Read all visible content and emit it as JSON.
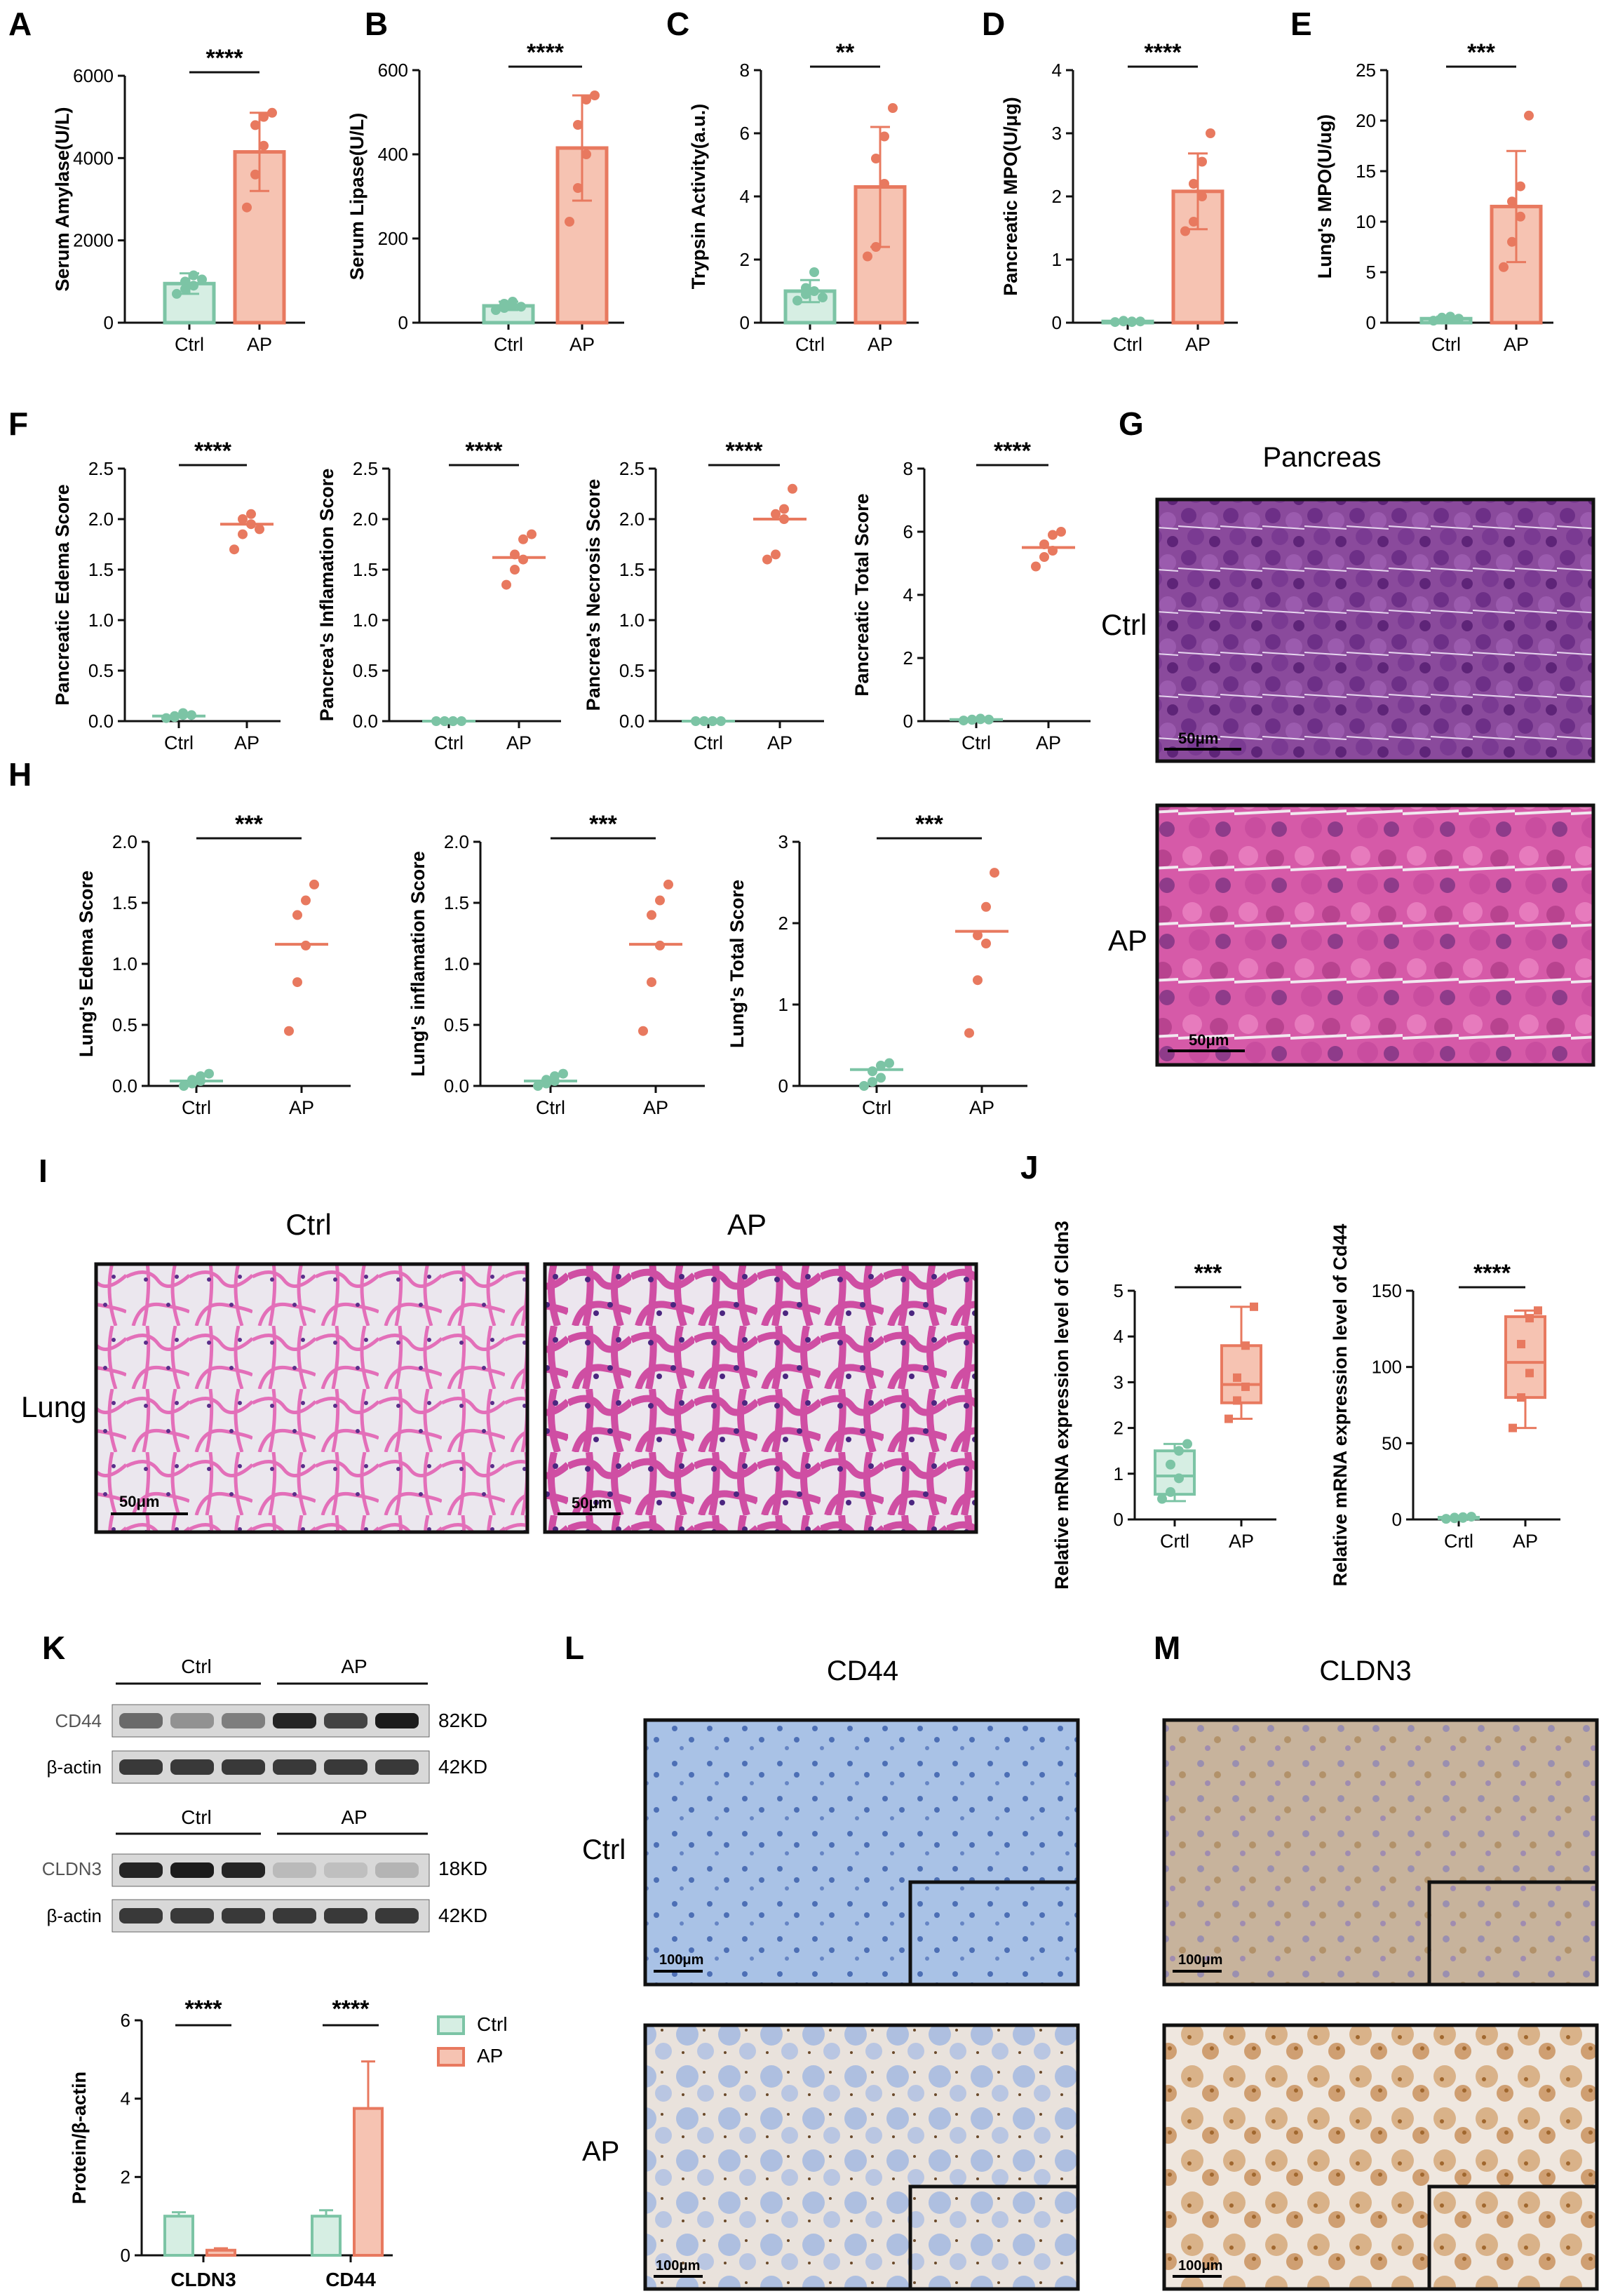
{
  "panels": {
    "A": "A",
    "B": "B",
    "C": "C",
    "D": "D",
    "E": "E",
    "F": "F",
    "G": "G",
    "H": "H",
    "I": "I",
    "J": "J",
    "K": "K",
    "L": "L",
    "M": "M"
  },
  "histology": {
    "G": {
      "title": "Pancreas",
      "row_labels": [
        "Ctrl",
        "AP"
      ],
      "scale": "50μm"
    },
    "I": {
      "col_labels": [
        "Ctrl",
        "AP"
      ],
      "row_label": "Lung",
      "scale": "50μm"
    },
    "L": {
      "title": "CD44",
      "row_labels": [
        "Ctrl",
        "AP"
      ],
      "scale": "100μm"
    },
    "M": {
      "title": "CLDN3",
      "scale": "100μm"
    }
  },
  "western": {
    "group_labels": [
      "Ctrl",
      "AP"
    ],
    "blot1": {
      "rows": [
        "CD44",
        "β-actin"
      ],
      "sizes": [
        "82KD",
        "42KD"
      ],
      "intensity": [
        [
          0.55,
          0.35,
          0.45,
          0.9,
          0.75,
          0.95
        ],
        [
          0.8,
          0.8,
          0.8,
          0.8,
          0.8,
          0.8
        ]
      ]
    },
    "blot2": {
      "rows": [
        "CLDN3",
        "β-actin"
      ],
      "sizes": [
        "18KD",
        "42KD"
      ],
      "intensity": [
        [
          0.9,
          0.95,
          0.9,
          0.15,
          0.12,
          0.18
        ],
        [
          0.8,
          0.8,
          0.8,
          0.8,
          0.8,
          0.8
        ]
      ]
    }
  },
  "colors": {
    "ctrl": "#7cc4a5",
    "ap": "#e8795f",
    "ctrl_fill": "#d6eee3",
    "ap_fill": "#f6c3b2"
  },
  "chart_data": [
    {
      "id": "A",
      "type": "bar",
      "categories": [
        "Ctrl",
        "AP"
      ],
      "ylabel": "Serum Amylase(U/L)",
      "ylim": [
        0,
        6000
      ],
      "yticks": [
        0,
        2000,
        4000,
        6000
      ],
      "means": [
        950,
        4150
      ],
      "sd": [
        250,
        950
      ],
      "points": [
        [
          700,
          820,
          900,
          1000,
          1150,
          1050
        ],
        [
          2800,
          3600,
          4300,
          4800,
          5000,
          5100
        ]
      ],
      "sig": "****"
    },
    {
      "id": "B",
      "type": "bar",
      "categories": [
        "Ctrl",
        "AP"
      ],
      "ylabel": "Serum Lipase(U/L)",
      "ylim": [
        0,
        600
      ],
      "yticks": [
        0,
        200,
        400,
        600
      ],
      "means": [
        40,
        415
      ],
      "sd": [
        10,
        125
      ],
      "points": [
        [
          30,
          35,
          40,
          45,
          50,
          38
        ],
        [
          240,
          320,
          400,
          470,
          530,
          540
        ]
      ],
      "sig": "****"
    },
    {
      "id": "C",
      "type": "bar",
      "categories": [
        "Ctrl",
        "AP"
      ],
      "ylabel": "Trypsin Activity(a.u.)",
      "ylim": [
        0,
        8
      ],
      "yticks": [
        0,
        2,
        4,
        6,
        8
      ],
      "means": [
        1.0,
        4.3
      ],
      "sd": [
        0.35,
        1.9
      ],
      "points": [
        [
          0.7,
          0.9,
          1.0,
          1.1,
          1.6,
          0.8
        ],
        [
          2.1,
          2.4,
          4.4,
          5.2,
          5.9,
          6.8
        ]
      ],
      "sig": "**"
    },
    {
      "id": "D",
      "type": "bar",
      "categories": [
        "Ctrl",
        "AP"
      ],
      "ylabel": "Pancreatic MPO(U/μg)",
      "ylim": [
        0,
        4
      ],
      "yticks": [
        0,
        1,
        2,
        3,
        4
      ],
      "means": [
        0.02,
        2.08
      ],
      "sd": [
        0.01,
        0.6
      ],
      "points": [
        [
          0.01,
          0.02,
          0.02,
          0.03,
          0.01,
          0.02
        ],
        [
          1.45,
          1.6,
          2.0,
          2.2,
          2.55,
          3.0
        ]
      ],
      "sig": "****"
    },
    {
      "id": "E",
      "type": "bar",
      "categories": [
        "Ctrl",
        "AP"
      ],
      "ylabel": "Lung's MPO(U/ug)",
      "ylim": [
        0,
        25
      ],
      "yticks": [
        0,
        5,
        10,
        15,
        20,
        25
      ],
      "means": [
        0.4,
        11.5
      ],
      "sd": [
        0.2,
        5.5
      ],
      "points": [
        [
          0.2,
          0.3,
          0.4,
          0.5,
          0.6,
          0.4
        ],
        [
          5.5,
          8.0,
          10.5,
          12.0,
          13.5,
          20.5
        ]
      ],
      "sig": "***"
    },
    {
      "id": "F1",
      "type": "scatter",
      "categories": [
        "Ctrl",
        "AP"
      ],
      "ylabel": "Pancreatic Edema Score",
      "ylim": [
        0,
        2.5
      ],
      "yticks": [
        0.0,
        0.5,
        1.0,
        1.5,
        2.0,
        2.5
      ],
      "means": [
        0.05,
        1.95
      ],
      "points": [
        [
          0.03,
          0.05,
          0.06,
          0.04,
          0.08,
          0.06
        ],
        [
          1.7,
          1.85,
          1.95,
          2.0,
          2.05,
          1.9
        ]
      ],
      "sig": "****"
    },
    {
      "id": "F2",
      "type": "scatter",
      "categories": [
        "Ctrl",
        "AP"
      ],
      "ylabel": "Pancrea's Inflamation Score",
      "ylim": [
        0,
        2.5
      ],
      "yticks": [
        0.0,
        0.5,
        1.0,
        1.5,
        2.0,
        2.5
      ],
      "means": [
        0.0,
        1.62
      ],
      "points": [
        [
          0,
          0,
          0,
          0,
          0,
          0
        ],
        [
          1.35,
          1.5,
          1.6,
          1.65,
          1.8,
          1.85
        ]
      ],
      "sig": "****"
    },
    {
      "id": "F3",
      "type": "scatter",
      "categories": [
        "Ctrl",
        "AP"
      ],
      "ylabel": "Pancrea's Necrosis Score",
      "ylim": [
        0,
        2.5
      ],
      "yticks": [
        0.0,
        0.5,
        1.0,
        1.5,
        2.0,
        2.5
      ],
      "means": [
        0.0,
        2.0
      ],
      "points": [
        [
          0,
          0,
          0,
          0,
          0,
          0
        ],
        [
          1.6,
          1.65,
          2.0,
          2.05,
          2.1,
          2.3
        ]
      ],
      "sig": "****"
    },
    {
      "id": "F4",
      "type": "scatter",
      "categories": [
        "Ctrl",
        "AP"
      ],
      "ylabel": "Pancreatic Total Score",
      "ylim": [
        0,
        8
      ],
      "yticks": [
        0,
        2,
        4,
        6,
        8
      ],
      "means": [
        0.05,
        5.5
      ],
      "points": [
        [
          0.02,
          0.05,
          0.06,
          0.04,
          0.08,
          0.05
        ],
        [
          4.9,
          5.2,
          5.4,
          5.6,
          5.9,
          6.0
        ]
      ],
      "sig": "****"
    },
    {
      "id": "H1",
      "type": "scatter",
      "categories": [
        "Ctrl",
        "AP"
      ],
      "ylabel": "Lung's  Edema Score",
      "ylim": [
        0,
        2.0
      ],
      "yticks": [
        0.0,
        0.5,
        1.0,
        1.5,
        2.0
      ],
      "means": [
        0.04,
        1.16
      ],
      "points": [
        [
          0.0,
          0.02,
          0.04,
          0.05,
          0.08,
          0.1
        ],
        [
          0.45,
          0.85,
          1.15,
          1.4,
          1.52,
          1.65
        ]
      ],
      "sig": "***"
    },
    {
      "id": "H2",
      "type": "scatter",
      "categories": [
        "Ctrl",
        "AP"
      ],
      "ylabel": "Lung's inflamation Score",
      "ylim": [
        0,
        2.0
      ],
      "yticks": [
        0.0,
        0.5,
        1.0,
        1.5,
        2.0
      ],
      "means": [
        0.04,
        1.16
      ],
      "points": [
        [
          0.0,
          0.02,
          0.04,
          0.05,
          0.08,
          0.1
        ],
        [
          0.45,
          0.85,
          1.15,
          1.4,
          1.52,
          1.65
        ]
      ],
      "sig": "***"
    },
    {
      "id": "H3",
      "type": "scatter",
      "categories": [
        "Ctrl",
        "AP"
      ],
      "ylabel": "Lung's Total Score",
      "ylim": [
        0,
        3
      ],
      "yticks": [
        0,
        1,
        2,
        3
      ],
      "means": [
        0.2,
        1.9
      ],
      "points": [
        [
          0.0,
          0.05,
          0.1,
          0.18,
          0.25,
          0.28
        ],
        [
          0.65,
          1.3,
          1.75,
          1.85,
          2.2,
          2.62
        ]
      ],
      "sig": "***"
    },
    {
      "id": "J1",
      "type": "box",
      "categories": [
        "Crtl",
        "AP"
      ],
      "ylabel": "Relative mRNA expression level of Cldn3",
      "ylim": [
        0,
        5
      ],
      "yticks": [
        0,
        1,
        2,
        3,
        4,
        5
      ],
      "boxes": [
        {
          "min": 0.4,
          "q1": 0.55,
          "median": 0.95,
          "q3": 1.5,
          "max": 1.65
        },
        {
          "min": 2.2,
          "q1": 2.55,
          "median": 2.95,
          "q3": 3.8,
          "max": 4.65
        }
      ],
      "points": [
        [
          0.45,
          0.6,
          0.9,
          1.2,
          1.5,
          1.65
        ],
        [
          2.2,
          2.6,
          2.9,
          3.1,
          3.8,
          4.65
        ]
      ],
      "sig": "***"
    },
    {
      "id": "J2",
      "type": "box",
      "categories": [
        "Crtl",
        "AP"
      ],
      "ylabel": "Relative mRNA expression level of Cd44",
      "ylim": [
        0,
        150
      ],
      "yticks": [
        0,
        50,
        100,
        150
      ],
      "boxes": [
        {
          "min": 0.3,
          "q1": 0.6,
          "median": 1.0,
          "q3": 1.4,
          "max": 1.8
        },
        {
          "min": 60,
          "q1": 80,
          "median": 103,
          "q3": 133,
          "max": 137
        }
      ],
      "points": [
        [
          0.4,
          0.8,
          1.0,
          1.2,
          1.5,
          1.8
        ],
        [
          60,
          80,
          96,
          115,
          132,
          137
        ]
      ],
      "sig": "****"
    },
    {
      "id": "K",
      "type": "bar",
      "categories": [
        "CLDN3",
        "CD44"
      ],
      "ylabel": "Protein/β-actin",
      "ylim": [
        0,
        6
      ],
      "yticks": [
        0,
        2,
        4,
        6
      ],
      "series": [
        {
          "name": "Ctrl",
          "values": [
            1.0,
            1.0
          ],
          "sd": [
            0.1,
            0.15
          ]
        },
        {
          "name": "AP",
          "values": [
            0.13,
            3.75
          ],
          "sd": [
            0.05,
            1.2
          ]
        }
      ],
      "sig": [
        "****",
        "****"
      ]
    }
  ]
}
